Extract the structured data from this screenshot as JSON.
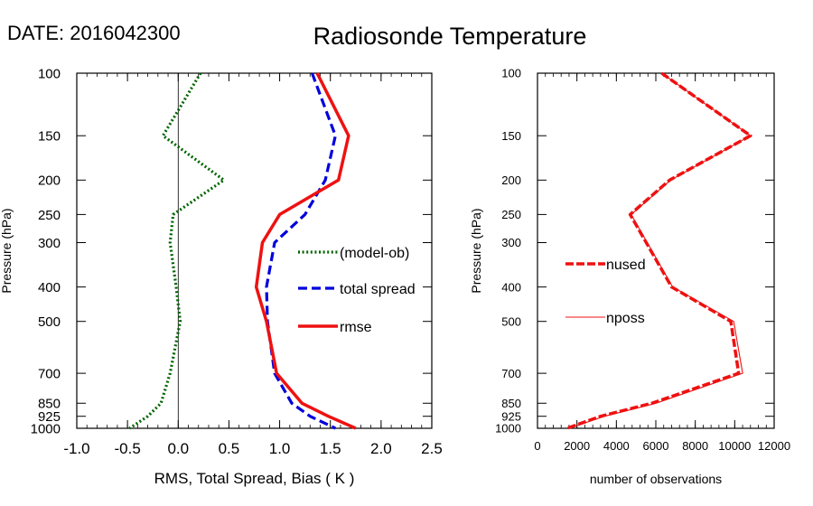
{
  "date_label": "DATE: 2016042300",
  "title": "Radiosonde Temperature",
  "chart_data": [
    {
      "type": "line",
      "xlabel": "RMS, Total Spread, Bias ( K )",
      "ylabel": "Pressure (hPa)",
      "xlim": [
        -1.0,
        2.5
      ],
      "ylim": [
        1000,
        100
      ],
      "y_scale": "log",
      "x_ticks": [
        "-1.0",
        "-0.5",
        "0.0",
        "0.5",
        "1.0",
        "1.5",
        "2.0",
        "2.5"
      ],
      "y_ticks": [
        "100",
        "150",
        "200",
        "250",
        "300",
        "400",
        "500",
        "700",
        "850",
        "925",
        "1000"
      ],
      "zero_line": true,
      "legend_position": "right-center",
      "series": [
        {
          "name": "(model-ob)",
          "color": "#006400",
          "style": "dotted",
          "y": [
            100,
            150,
            200,
            250,
            300,
            400,
            500,
            700,
            850,
            925,
            1000
          ],
          "x": [
            0.22,
            -0.15,
            0.45,
            -0.05,
            -0.08,
            -0.02,
            0.02,
            -0.08,
            -0.17,
            -0.3,
            -0.48
          ]
        },
        {
          "name": "total spread",
          "color": "#0000dd",
          "style": "dashed",
          "y": [
            100,
            150,
            200,
            250,
            300,
            400,
            500,
            700,
            850,
            925,
            1000
          ],
          "x": [
            1.32,
            1.55,
            1.45,
            1.25,
            0.95,
            0.87,
            0.88,
            0.95,
            1.12,
            1.3,
            1.55
          ]
        },
        {
          "name": "rmse",
          "color": "#ee1111",
          "style": "solid",
          "y": [
            100,
            150,
            200,
            250,
            300,
            400,
            500,
            700,
            850,
            925,
            1000
          ],
          "x": [
            1.37,
            1.68,
            1.58,
            1.0,
            0.83,
            0.77,
            0.87,
            0.97,
            1.22,
            1.48,
            1.75
          ]
        }
      ]
    },
    {
      "type": "line",
      "xlabel": "number of observations",
      "ylabel": "Pressure (hPa)",
      "xlim": [
        0,
        12000
      ],
      "ylim": [
        1000,
        100
      ],
      "y_scale": "log",
      "x_ticks": [
        "0",
        "2000",
        "4000",
        "6000",
        "8000",
        "10000",
        "12000"
      ],
      "y_ticks": [
        "100",
        "150",
        "200",
        "250",
        "300",
        "400",
        "500",
        "700",
        "850",
        "925",
        "1000"
      ],
      "legend_position": "left-center",
      "series": [
        {
          "name": "nused",
          "color": "#ee1111",
          "style": "dashed-thick",
          "y": [
            100,
            150,
            200,
            250,
            400,
            500,
            700,
            850,
            925,
            1000
          ],
          "x": [
            6300,
            10800,
            6700,
            4700,
            6800,
            9800,
            10200,
            5800,
            3200,
            1500
          ]
        },
        {
          "name": "nposs",
          "color": "#ee1111",
          "style": "thin",
          "y": [
            100,
            150,
            200,
            250,
            400,
            500,
            700,
            850,
            925,
            1000
          ],
          "x": [
            6300,
            10800,
            6750,
            4750,
            6850,
            9950,
            10400,
            6000,
            3400,
            1600
          ]
        }
      ]
    }
  ]
}
